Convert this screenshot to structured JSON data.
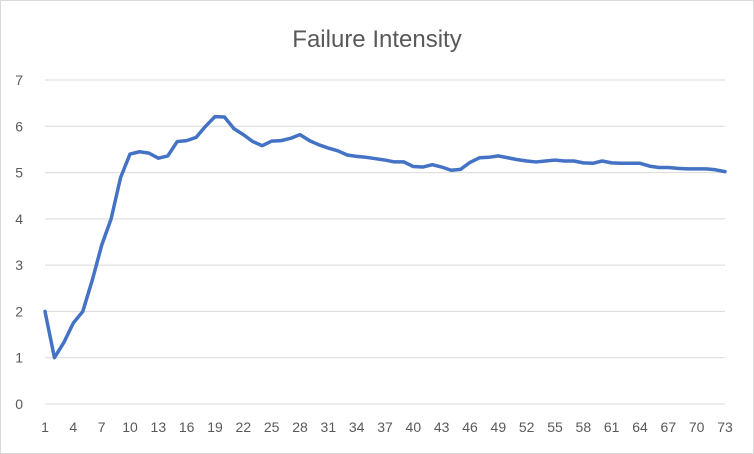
{
  "chart_data": {
    "type": "line",
    "title": "Failure Intensity",
    "xlabel": "",
    "ylabel": "",
    "ylim": [
      0,
      7
    ],
    "y_ticks": [
      "0",
      "1",
      "2",
      "3",
      "4",
      "5",
      "6",
      "7"
    ],
    "x_tick_labels": [
      "1",
      "4",
      "7",
      "10",
      "13",
      "16",
      "19",
      "22",
      "25",
      "28",
      "31",
      "34",
      "37",
      "40",
      "43",
      "46",
      "49",
      "52",
      "55",
      "58",
      "61",
      "64",
      "67",
      "70",
      "73"
    ],
    "grid": "horizontal",
    "legend": "none",
    "series": [
      {
        "color": "#4472c4",
        "x": [
          1,
          2,
          3,
          4,
          5,
          6,
          7,
          8,
          9,
          10,
          11,
          12,
          13,
          14,
          15,
          16,
          17,
          18,
          19,
          20,
          21,
          22,
          23,
          24,
          25,
          26,
          27,
          28,
          29,
          30,
          31,
          32,
          33,
          34,
          35,
          36,
          37,
          38,
          39,
          40,
          41,
          42,
          43,
          44,
          45,
          46,
          47,
          48,
          49,
          50,
          51,
          52,
          53,
          54,
          55,
          56,
          57,
          58,
          59,
          60,
          61,
          62,
          63,
          64,
          65,
          66,
          67,
          68,
          69,
          70,
          71,
          72,
          73
        ],
        "values": [
          2.0,
          1.0,
          1.33,
          1.75,
          2.0,
          2.67,
          3.43,
          4.0,
          4.89,
          5.4,
          5.45,
          5.42,
          5.31,
          5.36,
          5.67,
          5.69,
          5.76,
          6.0,
          6.21,
          6.2,
          5.95,
          5.82,
          5.67,
          5.58,
          5.68,
          5.69,
          5.74,
          5.82,
          5.69,
          5.6,
          5.53,
          5.47,
          5.38,
          5.35,
          5.33,
          5.3,
          5.27,
          5.23,
          5.23,
          5.13,
          5.12,
          5.17,
          5.12,
          5.05,
          5.07,
          5.22,
          5.32,
          5.33,
          5.36,
          5.32,
          5.28,
          5.25,
          5.23,
          5.25,
          5.27,
          5.25,
          5.25,
          5.21,
          5.2,
          5.25,
          5.21,
          5.2,
          5.2,
          5.2,
          5.14,
          5.11,
          5.11,
          5.09,
          5.08,
          5.08,
          5.08,
          5.06,
          5.02
        ]
      }
    ]
  }
}
